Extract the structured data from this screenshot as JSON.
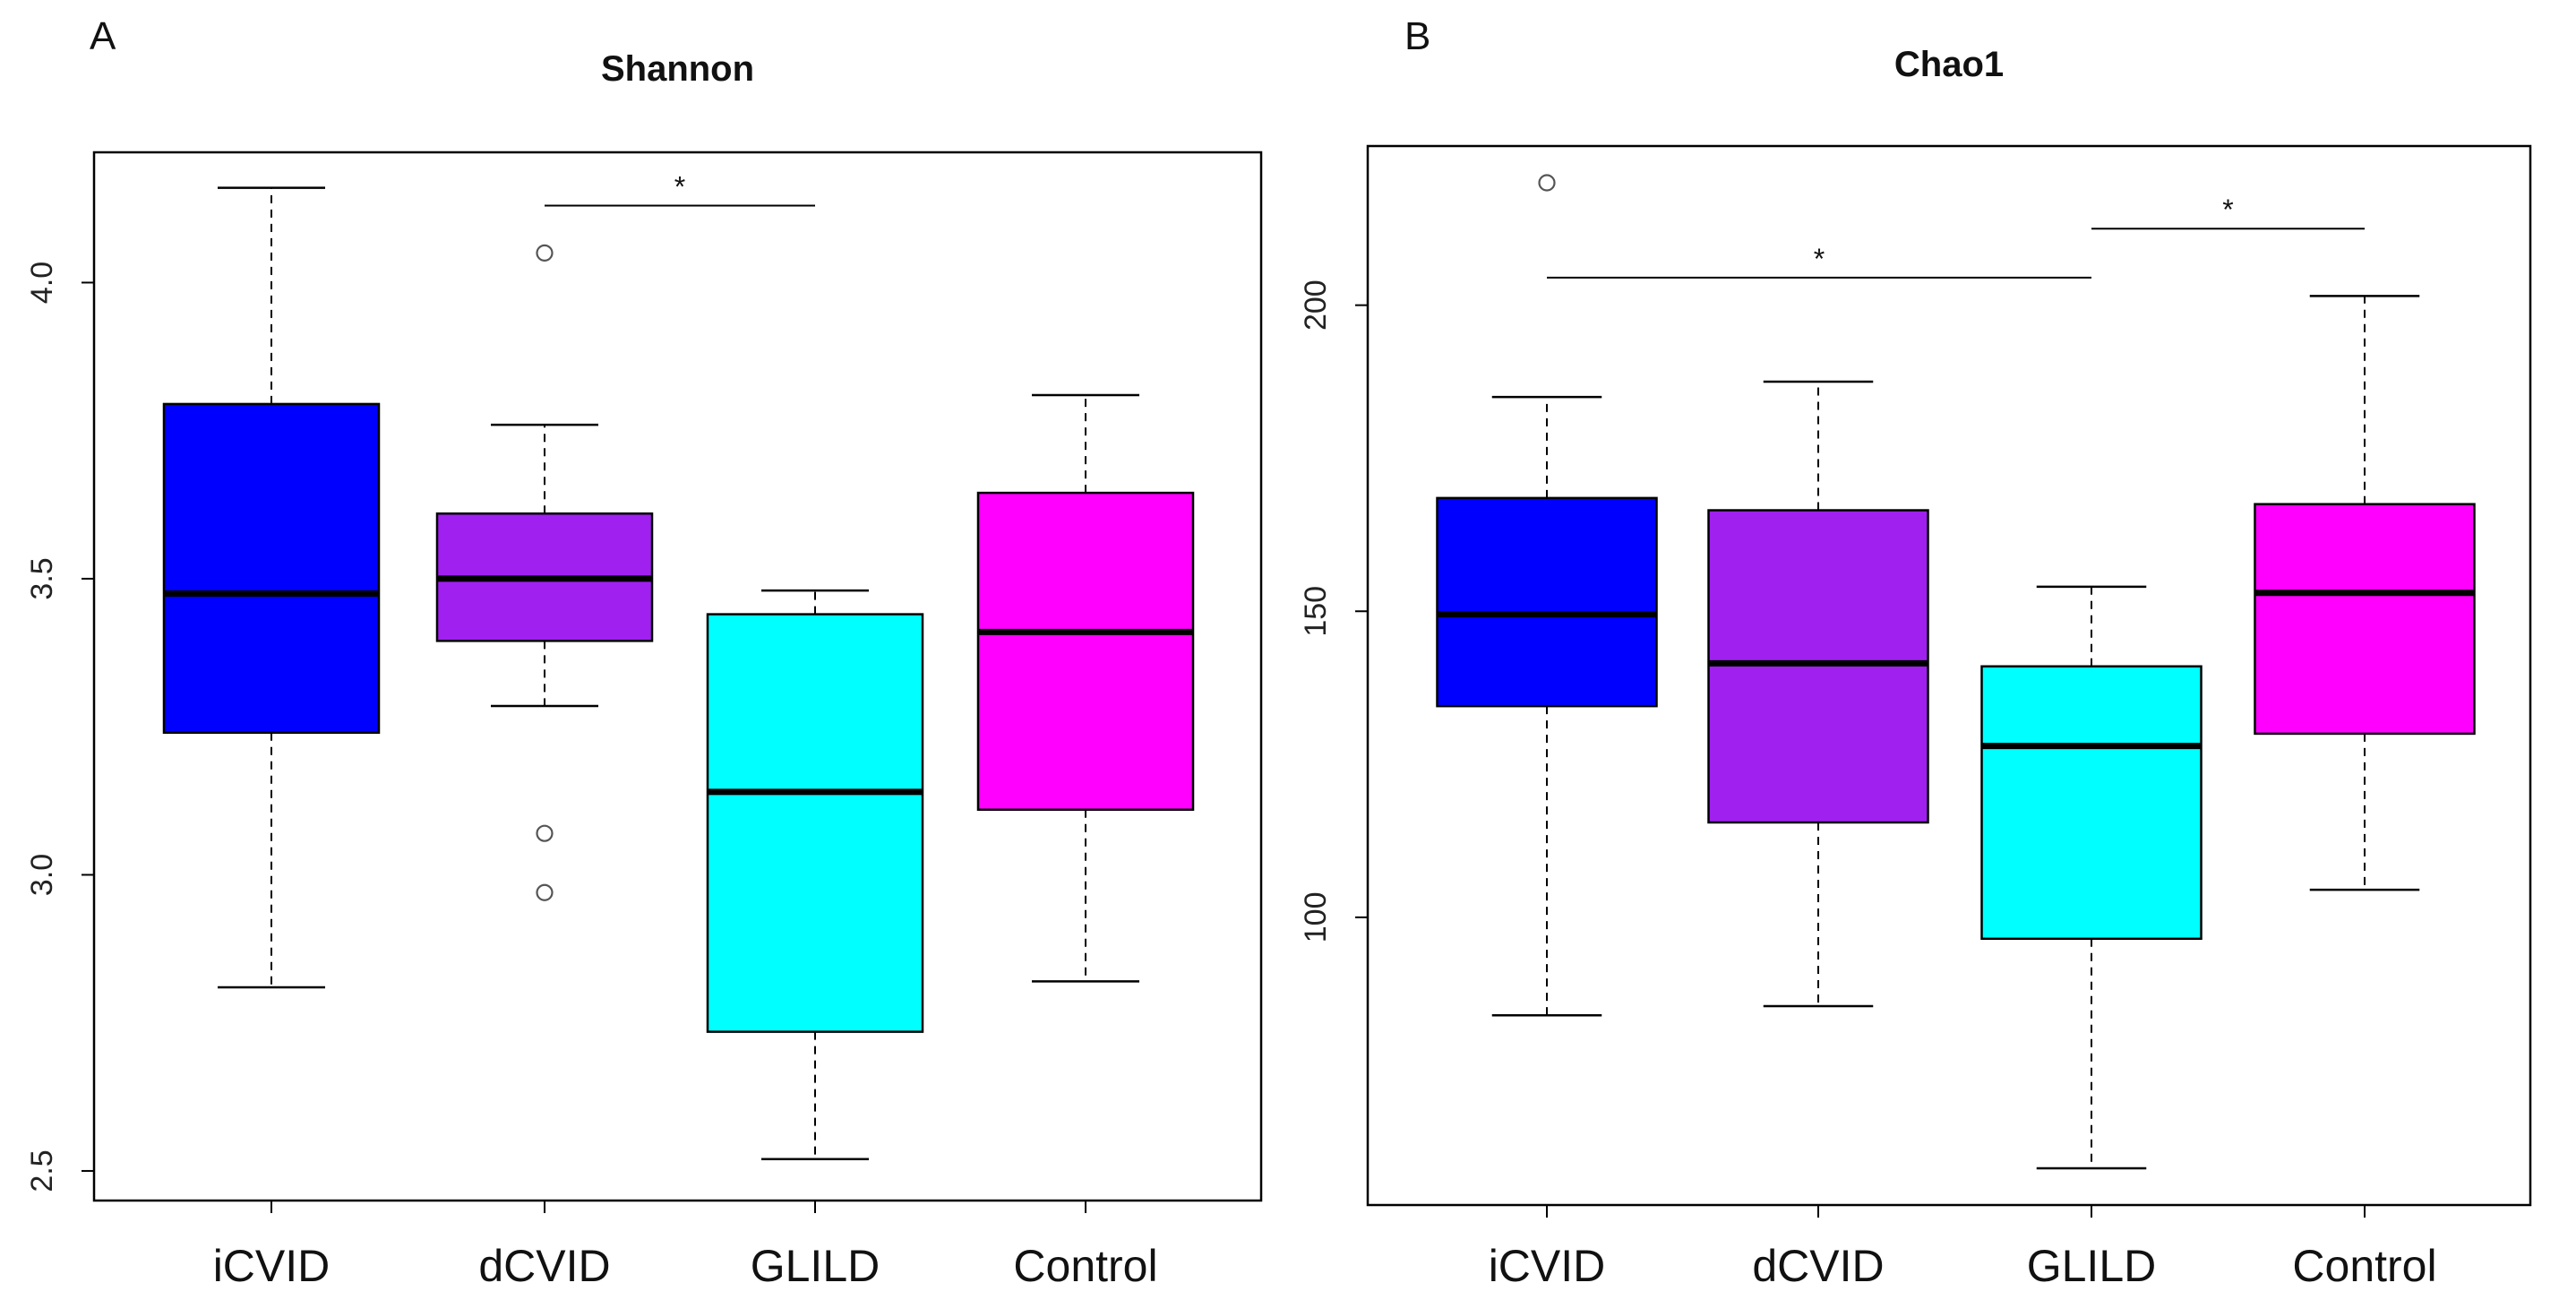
{
  "chart_data": [
    {
      "panel": "A",
      "type": "box",
      "title": "Shannon",
      "xlabel": "",
      "ylabel": "",
      "ylim": [
        2.45,
        4.22
      ],
      "yticks": [
        2.5,
        3.0,
        3.5,
        4.0
      ],
      "ytick_labels": [
        "2.5",
        "3.0",
        "3.5",
        "4.0"
      ],
      "categories": [
        "iCVID",
        "dCVID",
        "GLILD",
        "Control"
      ],
      "colors": [
        "#0000FF",
        "#A020F0",
        "#00FFFF",
        "#FF00FF"
      ],
      "boxes": [
        {
          "q1": 3.24,
          "median": 3.475,
          "q3": 3.795,
          "whisker_low": 2.81,
          "whisker_high": 4.16,
          "outliers": []
        },
        {
          "q1": 3.395,
          "median": 3.5,
          "q3": 3.61,
          "whisker_low": 3.285,
          "whisker_high": 3.76,
          "outliers": [
            4.05,
            3.07,
            2.97
          ]
        },
        {
          "q1": 2.735,
          "median": 3.14,
          "q3": 3.44,
          "whisker_low": 2.52,
          "whisker_high": 3.48,
          "outliers": []
        },
        {
          "q1": 3.11,
          "median": 3.41,
          "q3": 3.645,
          "whisker_low": 2.82,
          "whisker_high": 3.81,
          "outliers": []
        }
      ],
      "significance": [
        {
          "from": 1,
          "to": 2,
          "y": 4.13,
          "label": "*"
        }
      ]
    },
    {
      "panel": "B",
      "type": "box",
      "title": "Chao1",
      "xlabel": "",
      "ylabel": "",
      "ylim": [
        53,
        226
      ],
      "yticks": [
        100,
        150,
        200
      ],
      "ytick_labels": [
        "100",
        "150",
        "200"
      ],
      "categories": [
        "iCVID",
        "dCVID",
        "GLILD",
        "Control"
      ],
      "colors": [
        "#0000FF",
        "#A020F0",
        "#00FFFF",
        "#FF00FF"
      ],
      "boxes": [
        {
          "q1": 134.5,
          "median": 149.5,
          "q3": 168.5,
          "whisker_low": 84,
          "whisker_high": 185,
          "outliers": [
            220
          ]
        },
        {
          "q1": 115.5,
          "median": 141.5,
          "q3": 166.5,
          "whisker_low": 85.5,
          "whisker_high": 187.5,
          "outliers": []
        },
        {
          "q1": 96.5,
          "median": 128,
          "q3": 141,
          "whisker_low": 59,
          "whisker_high": 154,
          "outliers": []
        },
        {
          "q1": 130,
          "median": 153,
          "q3": 167.5,
          "whisker_low": 104.5,
          "whisker_high": 201.5,
          "outliers": []
        }
      ],
      "significance": [
        {
          "from": 0,
          "to": 2,
          "y": 204.5,
          "label": "*"
        },
        {
          "from": 2,
          "to": 3,
          "y": 212.5,
          "label": "*"
        }
      ]
    }
  ]
}
